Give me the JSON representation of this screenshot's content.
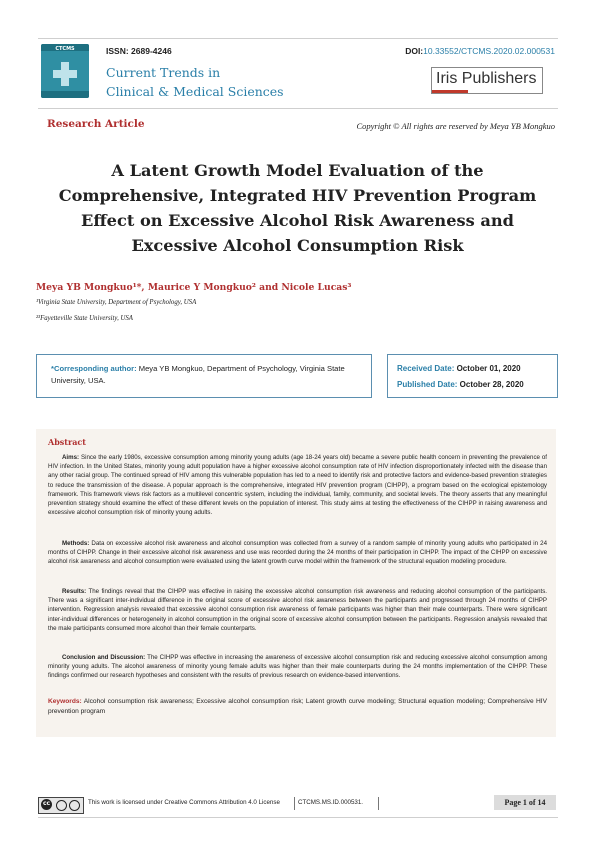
{
  "header": {
    "logo_text": "CTCMS",
    "issn": "ISSN: 2689-4246",
    "doi_label": "DOI:",
    "doi_value": "10.33552/CTCMS.2020.02.000531",
    "journal_line1": "Current Trends in",
    "journal_line2": "Clinical & Medical Sciences",
    "publisher": "Iris Publishers"
  },
  "article": {
    "type": "Research Article",
    "copyright": "Copyright © All rights are reserved by Meya YB Mongkuo",
    "title_lines": [
      "A Latent Growth Model Evaluation of the",
      "Comprehensive, Integrated HIV Prevention Program",
      "Effect on Excessive Alcohol Risk Awareness and",
      "Excessive Alcohol Consumption Risk"
    ],
    "authors": "Meya YB Mongkuo¹*, Maurice Y Mongkuo² and Nicole Lucas³",
    "affiliations": [
      "¹Virginia State University, Department of Psychology, USA",
      "²³Fayetteville State University, USA"
    ]
  },
  "correspondence": {
    "label": "*Corresponding author:",
    "text": " Meya YB Mongkuo, Department of Psychology, Virginia State University, USA."
  },
  "dates": {
    "received_label": "Received Date:",
    "received": " October 01, 2020",
    "published_label": "Published Date:",
    "published": " October 28, 2020"
  },
  "abstract": {
    "heading": "Abstract",
    "aims_label": "Aims:",
    "aims": " Since the early 1980s, excessive consumption among minority young adults (age 18-24 years old) became a severe public health concern in preventing the prevalence of HIV infection. In the United States, minority young adult population have a higher excessive alcohol consumption rate of HIV infection disproportionately infected with the disease than any other racial group. The continued spread of HIV among this vulnerable population has led to a need to identify risk and protective factors and evidence-based prevention strategies to reduce the transmission of the disease. A popular approach is the comprehensive, integrated HIV prevention program (CIHPP), a program based on the ecological epistemology framework. This framework views risk factors as a multilevel concentric system, including the individual, family, community, and societal levels. The theory asserts that any meaningful prevention strategy should examine the effect of these different levels on the population of interest. This study aims at testing the effectiveness of the CIHPP in raising awareness and excessive alcohol consumption risk of minority young adults.",
    "methods_label": "Methods:",
    "methods": " Data on excessive alcohol risk awareness and alcohol consumption was collected from a survey of a random sample of minority young adults who participated in 24 months of CIHPP. Change in their excessive alcohol risk awareness and use was recorded during the 24 months of their participation in CIHPP. The impact of the CIHPP on excessive alcohol risk awareness and alcohol consumption were evaluated using the latent growth curve model within the framework of the structural equation modeling procedure.",
    "results_label": "Results:",
    "results": " The findings reveal that the CIHPP was effective in raising the excessive alcohol consumption risk awareness and reducing alcohol consumption of the participants. There was a significant inter-individual difference in the original score of excessive alcohol risk awareness between the participants and progressed through 24 months of CIHPP intervention. Regression analysis revealed that excessive alcohol consumption risk awareness of female participants was higher than their male counterparts. There were significant inter-individual differences or heterogeneity in alcohol consumption in the original score of excessive alcohol consumption between the participants. Regression analysis revealed that the male participants consumed more alcohol than their female counterparts.",
    "conclusion_label": "Conclusion and Discussion:",
    "conclusion": " The CIHPP was effective in increasing the awareness of excessive alcohol consumption risk and reducing excessive alcohol consumption among minority young adults. The alcohol awareness of minority young female adults was higher than their male counterparts during the 24 months implementation of the CIHPP. These findings confirmed our research hypotheses and consistent with the results of previous research on evidence-based interventions.",
    "keywords_label": "Keywords:",
    "keywords": " Alcohol consumption risk awareness; Excessive alcohol consumption risk; Latent growth curve modeling; Structural equation modeling; Comprehensive HIV prevention program"
  },
  "footer": {
    "license": "This work is licensed under Creative Commons Attribution 4.0 License",
    "article_id": "CTCMS.MS.ID.000531.",
    "page": "Page 1 of 14",
    "cc_text": "cc"
  }
}
